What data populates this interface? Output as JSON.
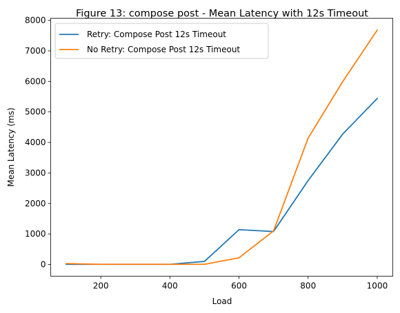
{
  "chart_data": {
    "type": "line",
    "title": "Figure 13: compose post - Mean Latency with 12s Timeout",
    "xlabel": "Load",
    "ylabel": "Mean Latency (ms)",
    "x": [
      100,
      200,
      300,
      400,
      500,
      600,
      700,
      800,
      900,
      1000
    ],
    "xlim": [
      55,
      1045
    ],
    "ylim": [
      -384,
      8070
    ],
    "xticks": [
      200,
      400,
      600,
      800,
      1000
    ],
    "yticks": [
      0,
      1000,
      2000,
      3000,
      4000,
      5000,
      6000,
      7000,
      8000
    ],
    "grid": false,
    "legend_position": "top-left",
    "series": [
      {
        "name": "Retry: Compose Post 12s Timeout",
        "color": "#1f77b4",
        "values": [
          5,
          5,
          5,
          5,
          100,
          1140,
          1080,
          2750,
          4270,
          5440
        ]
      },
      {
        "name": "No Retry: Compose Post 12s Timeout",
        "color": "#ff7f0e",
        "values": [
          30,
          5,
          5,
          5,
          5,
          220,
          1100,
          4140,
          5990,
          7680
        ]
      }
    ]
  }
}
